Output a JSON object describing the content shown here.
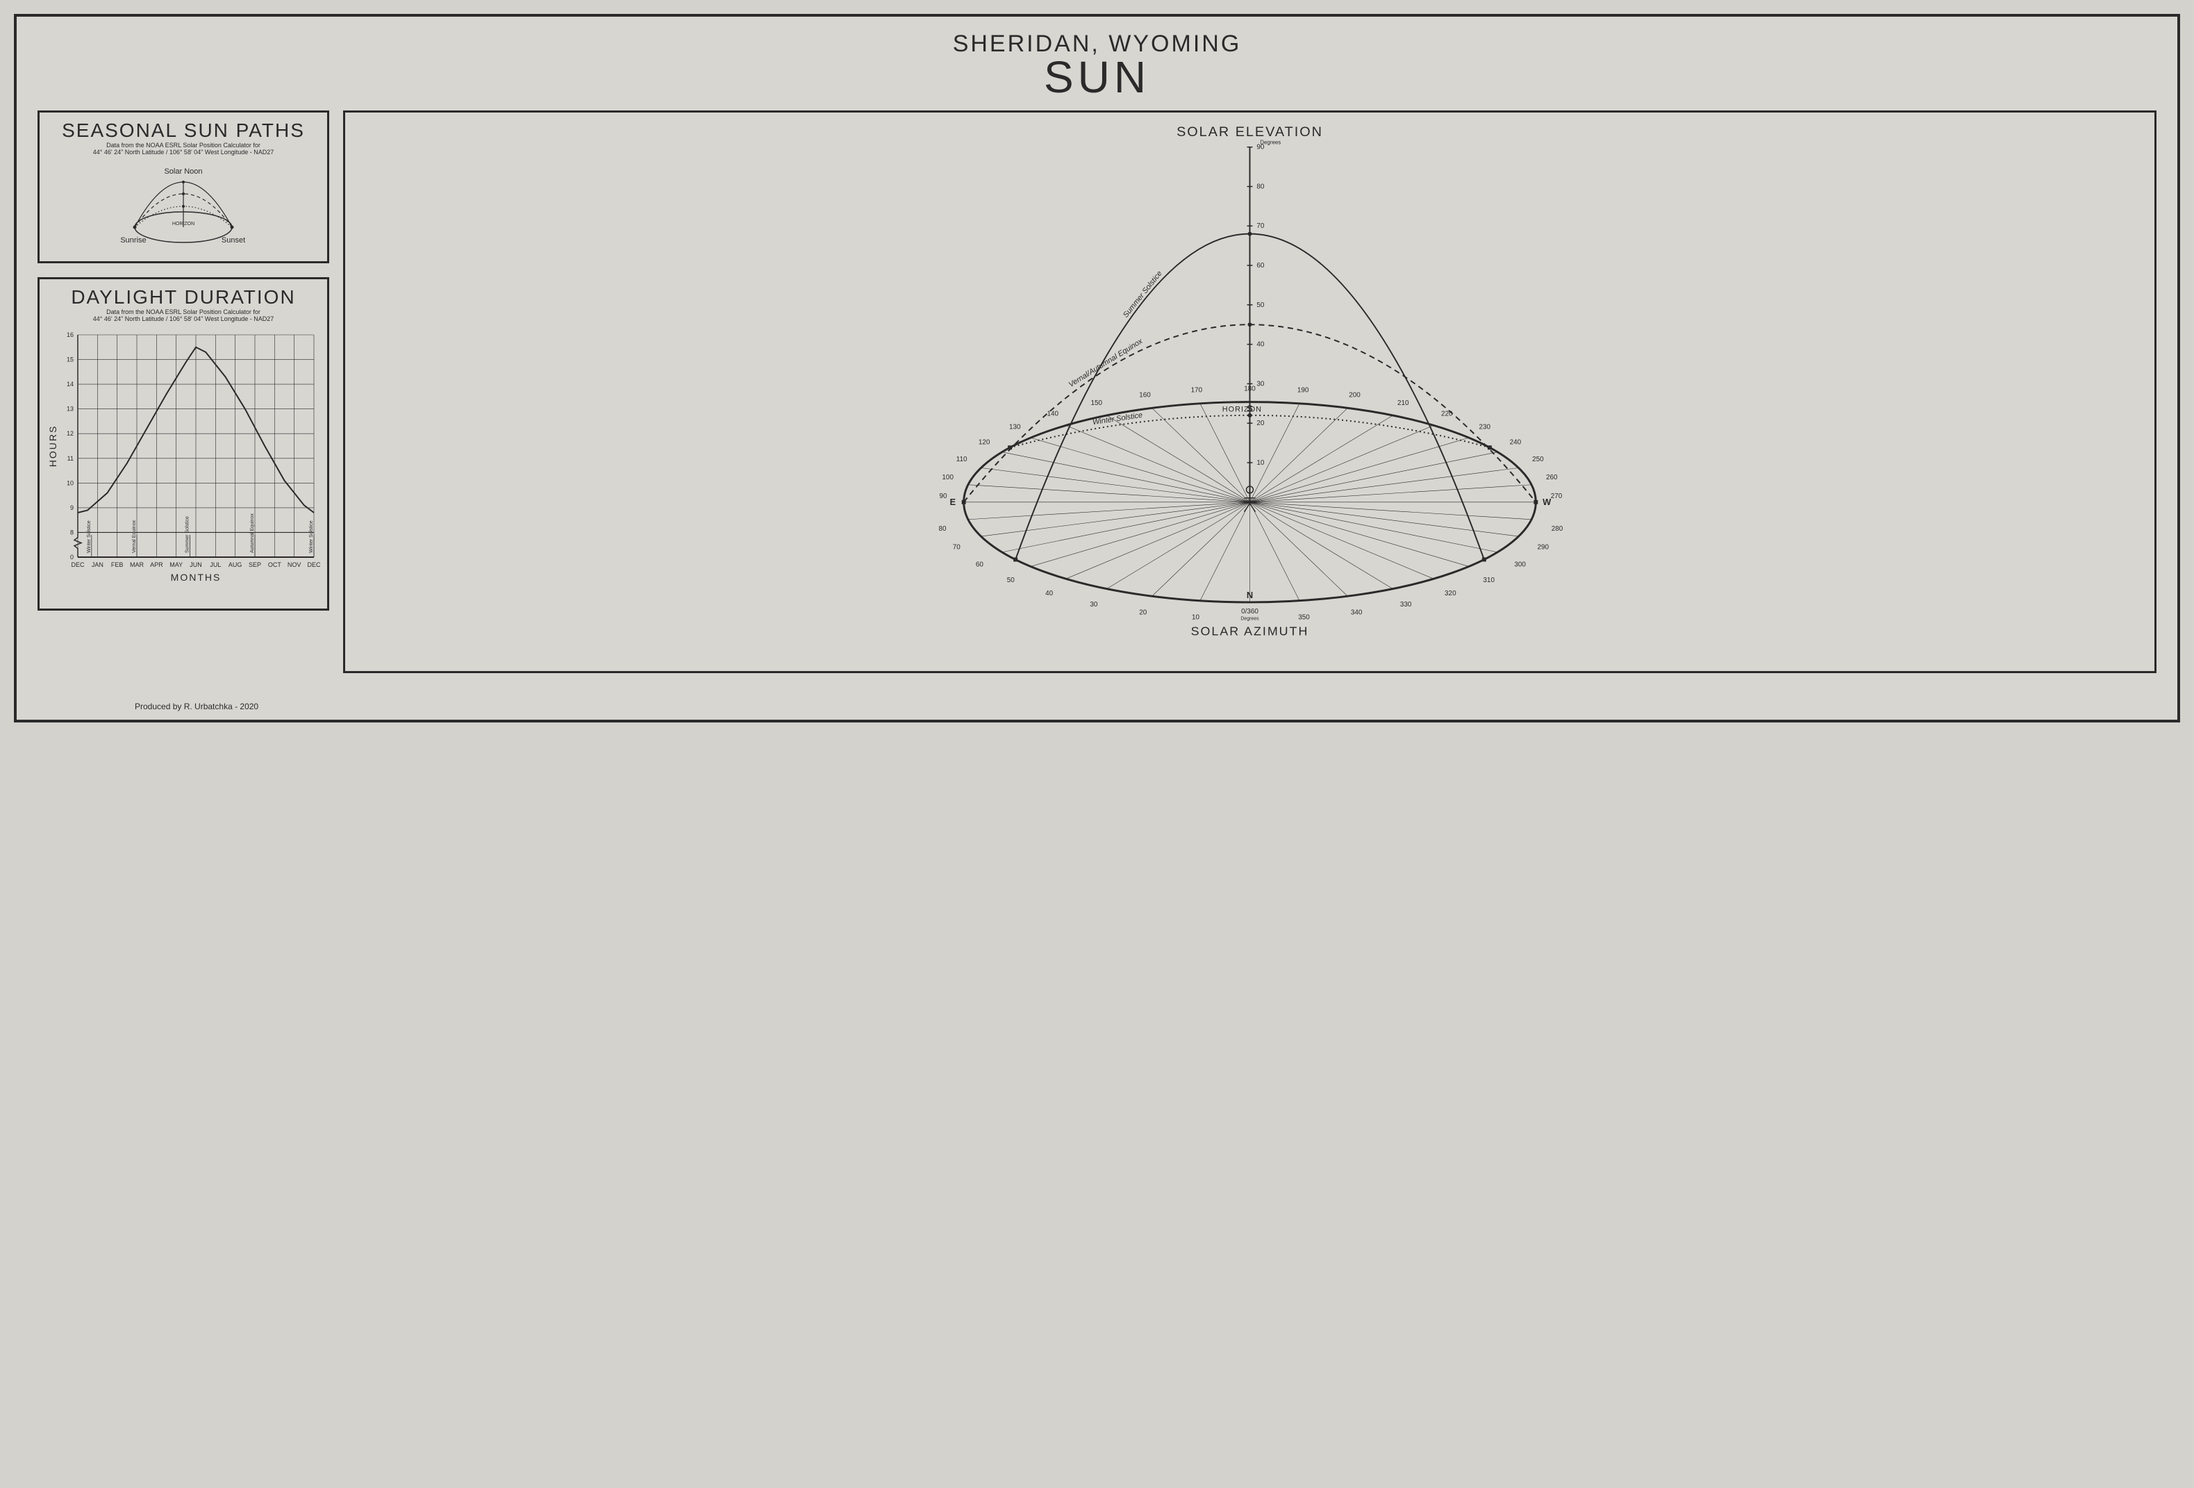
{
  "background_color": "#d8d6d1",
  "ink_color": "#2a2a2a",
  "header": {
    "location": "SHERIDAN, WYOMING",
    "title": "SUN"
  },
  "legend_panel": {
    "title": "SEASONAL SUN PATHS",
    "sub1": "Data from the NOAA ESRL Solar Position Calculator for",
    "sub2": "44° 46' 24\" North Latitude / 106° 58' 04\" West Longitude - NAD27",
    "labels": {
      "solar_noon": "Solar Noon",
      "sunrise": "Sunrise",
      "sunset": "Sunset",
      "horizon": "HORIZON"
    }
  },
  "daylight_panel": {
    "title": "DAYLIGHT DURATION",
    "sub1": "Data from the NOAA ESRL Solar Position Calculator for",
    "sub2": "44° 46' 24\" North Latitude / 106° 58' 04\" West Longitude - NAD27",
    "type": "line",
    "x_axis": {
      "label": "MONTHS",
      "ticks": [
        "DEC",
        "JAN",
        "FEB",
        "MAR",
        "APR",
        "MAY",
        "JUN",
        "JUL",
        "AUG",
        "SEP",
        "OCT",
        "NOV",
        "DEC"
      ],
      "fontsize": 9
    },
    "y_axis": {
      "label": "HOURS",
      "ticks": [
        0,
        8,
        9,
        10,
        11,
        12,
        13,
        14,
        15,
        16
      ],
      "fontsize": 9,
      "break_between": [
        0,
        8
      ]
    },
    "annotations": [
      "Winter Solstice",
      "Vernal Equinox",
      "Summer Solstice",
      "Autumnal Equinox",
      "Winter Solstice"
    ],
    "annotation_positions_month_index": [
      0.7,
      3.0,
      5.7,
      9.0,
      12.0
    ],
    "curve_hours_by_month_index": [
      8.8,
      8.9,
      9.6,
      10.8,
      12.2,
      13.6,
      14.9,
      15.5,
      15.3,
      14.3,
      13.0,
      11.5,
      10.1,
      9.1,
      8.8
    ],
    "curve_x_month_index": [
      0,
      0.5,
      1.5,
      2.5,
      3.5,
      4.5,
      5.5,
      6,
      6.5,
      7.5,
      8.5,
      9.5,
      10.5,
      11.5,
      12
    ],
    "line_width": 2,
    "grid_color": "#2a2a2a"
  },
  "main_panel": {
    "elevation_label": "SOLAR ELEVATION",
    "elevation_unit": "Degrees",
    "azimuth_label": "SOLAR AZIMUTH",
    "azimuth_unit": "Degrees",
    "horizon_label": "HORIZON",
    "paths": {
      "summer": {
        "label": "Summer Solstice",
        "style": "solid",
        "max_elev": 68,
        "az_start": 55,
        "az_end": 305,
        "linewidth": 2
      },
      "equinox": {
        "label": "Vernal/Autumnal Equinox",
        "style": "dashed",
        "max_elev": 45,
        "az_start": 90,
        "az_end": 270,
        "linewidth": 2
      },
      "winter": {
        "label": "Winter Solstice",
        "style": "dotted",
        "max_elev": 22,
        "az_start": 123,
        "az_end": 237,
        "linewidth": 2
      }
    },
    "elevation_ticks": [
      10,
      20,
      30,
      40,
      50,
      60,
      70,
      80,
      90
    ],
    "azimuth_ticks_front": [
      90,
      100,
      110,
      120,
      130,
      140,
      150,
      160,
      170,
      180,
      190,
      200,
      210,
      220,
      230,
      240,
      250,
      260,
      270
    ],
    "azimuth_ticks_back_left": [
      80,
      70,
      60,
      50,
      40,
      30,
      20,
      10
    ],
    "azimuth_ticks_back_right": [
      280,
      290,
      300,
      310,
      320,
      330,
      340,
      350
    ],
    "azimuth_zero_label": "0/360",
    "compass": {
      "N": "N",
      "S": "S",
      "E": "E",
      "W": "W"
    },
    "ellipse": {
      "rx_ratio": 1.0,
      "ry_ratio": 0.35
    }
  },
  "credit": "Produced by R. Urbatchka - 2020"
}
